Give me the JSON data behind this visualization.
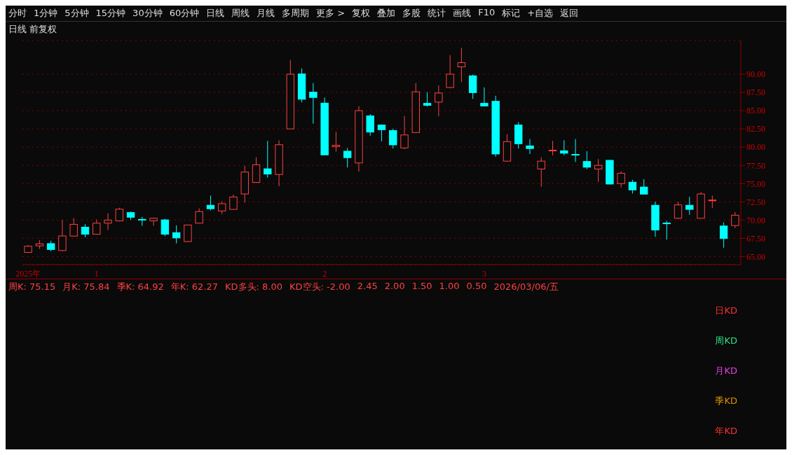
{
  "chart_data": [
    {
      "type": "candlestick",
      "title": "日线 前复权",
      "annotations": [
        "分时",
        "1分钟",
        "5分钟",
        "15分钟",
        "30分钟",
        "60分钟",
        "日线",
        "周线",
        "月线",
        "多周期",
        "更多 >",
        "复权",
        "叠加",
        "多股",
        "统计",
        "画线",
        "F10",
        "标记",
        "+自选",
        "返回"
      ],
      "categories": [
        "2025年",
        null,
        null,
        null,
        null,
        null,
        "1",
        null,
        null,
        null,
        null,
        null,
        null,
        null,
        null,
        null,
        null,
        null,
        null,
        null,
        null,
        null,
        null,
        null,
        null,
        null,
        "2",
        null,
        null,
        null,
        null,
        null,
        null,
        null,
        null,
        null,
        null,
        null,
        null,
        null,
        "3",
        null,
        null,
        null,
        null,
        null,
        null,
        null,
        null,
        null,
        null,
        null,
        null,
        null,
        null,
        null,
        null,
        null,
        null,
        null,
        null,
        null,
        null
      ],
      "ohlc": [
        [
          65.58,
          66.6,
          65.58,
          66.42
        ],
        [
          66.47,
          67.25,
          66.06,
          66.75
        ],
        [
          66.78,
          67.17,
          65.72,
          65.97
        ],
        [
          65.83,
          70.03,
          65.72,
          67.83
        ],
        [
          67.81,
          70.28,
          67.81,
          69.42
        ],
        [
          69.03,
          69.44,
          67.64,
          68.06
        ],
        [
          68.06,
          70.08,
          68.06,
          69.58
        ],
        [
          69.58,
          70.92,
          68.64,
          70.0
        ],
        [
          69.89,
          71.69,
          69.81,
          71.5
        ],
        [
          71.03,
          71.19,
          70.03,
          70.39
        ],
        [
          70.1,
          70.44,
          69.22,
          70.05
        ],
        [
          69.89,
          70.36,
          69.22,
          70.25
        ],
        [
          70.03,
          70.17,
          67.81,
          68.06
        ],
        [
          68.28,
          69.28,
          66.81,
          67.56
        ],
        [
          67.06,
          69.33,
          66.97,
          69.33
        ],
        [
          69.58,
          71.61,
          69.58,
          71.17
        ],
        [
          72.03,
          73.36,
          71.31,
          71.56
        ],
        [
          71.25,
          72.58,
          70.81,
          72.25
        ],
        [
          71.47,
          73.5,
          71.47,
          73.17
        ],
        [
          73.58,
          77.44,
          72.39,
          76.58
        ],
        [
          75.17,
          78.61,
          75.08,
          77.58
        ],
        [
          77.03,
          80.86,
          75.81,
          76.31
        ],
        [
          76.25,
          80.94,
          74.64,
          80.33
        ],
        [
          82.5,
          91.94,
          82.5,
          90.0
        ],
        [
          90.03,
          90.78,
          86.14,
          86.56
        ],
        [
          87.53,
          88.78,
          83.22,
          86.81
        ],
        [
          86.03,
          86.78,
          78.89,
          78.94
        ],
        [
          80.08,
          82.11,
          79.39,
          80.25
        ],
        [
          79.44,
          79.86,
          77.22,
          78.56
        ],
        [
          77.83,
          85.61,
          76.64,
          85.0
        ],
        [
          84.28,
          84.53,
          81.56,
          82.06
        ],
        [
          83.03,
          83.11,
          80.81,
          82.39
        ],
        [
          82.28,
          82.53,
          79.81,
          80.31
        ],
        [
          79.89,
          84.28,
          79.72,
          81.67
        ],
        [
          82.0,
          88.78,
          82.0,
          87.58
        ],
        [
          86.0,
          87.53,
          85.56,
          85.72
        ],
        [
          86.17,
          88.44,
          84.22,
          87.42
        ],
        [
          88.17,
          92.61,
          88.06,
          90.0
        ],
        [
          91.0,
          93.61,
          88.89,
          91.58
        ],
        [
          89.78,
          89.94,
          86.61,
          87.47
        ],
        [
          86.0,
          88.19,
          85.56,
          85.64
        ],
        [
          86.28,
          87.03,
          78.69,
          79.06
        ],
        [
          78.08,
          81.78,
          78.08,
          80.75
        ],
        [
          83.03,
          83.44,
          79.81,
          80.47
        ],
        [
          80.17,
          81.11,
          79.06,
          79.81
        ],
        [
          77.0,
          78.61,
          74.56,
          78.08
        ],
        [
          79.58,
          80.86,
          78.89,
          79.58
        ],
        [
          79.5,
          80.94,
          78.89,
          79.17
        ],
        [
          79.0,
          81.11,
          77.97,
          78.95
        ],
        [
          78.03,
          79.44,
          76.97,
          77.25
        ],
        [
          77.0,
          78.36,
          75.22,
          77.5
        ],
        [
          78.19,
          78.28,
          74.89,
          74.94
        ],
        [
          75.0,
          76.69,
          74.47,
          76.42
        ],
        [
          75.19,
          75.53,
          73.64,
          74.14
        ],
        [
          74.53,
          75.61,
          73.56,
          73.56
        ],
        [
          72.03,
          72.53,
          67.72,
          68.64
        ],
        [
          69.6,
          69.89,
          67.31,
          69.55
        ],
        [
          70.25,
          72.53,
          70.14,
          72.08
        ],
        [
          72.03,
          73.19,
          70.72,
          71.47
        ],
        [
          70.25,
          73.86,
          70.25,
          73.58
        ],
        [
          72.75,
          73.36,
          71.64,
          72.75
        ],
        [
          69.19,
          69.69,
          66.22,
          67.47
        ],
        [
          69.25,
          71.08,
          68.92,
          70.67
        ]
      ],
      "colors": [
        "#ff4040",
        "#ff4040",
        "#00ffff",
        "#ff4040",
        "#ff4040",
        "#00ffff",
        "#ff4040",
        "#ff4040",
        "#ff4040",
        "#00ffff",
        "#00ffff",
        "#ff4040",
        "#00ffff",
        "#00ffff",
        "#ff4040",
        "#ff4040",
        "#00ffff",
        "#ff4040",
        "#ff4040",
        "#ff4040",
        "#ff4040",
        "#00ffff",
        "#ff4040",
        "#ff4040",
        "#00ffff",
        "#00ffff",
        "#00ffff",
        "#ff4040",
        "#00ffff",
        "#ff4040",
        "#00ffff",
        "#00ffff",
        "#00ffff",
        "#ff4040",
        "#ff4040",
        "#00ffff",
        "#ff4040",
        "#ff4040",
        "#ff4040",
        "#00ffff",
        "#00ffff",
        "#00ffff",
        "#ff4040",
        "#00ffff",
        "#00ffff",
        "#ff4040",
        "#ff4040",
        "#00ffff",
        "#00ffff",
        "#00ffff",
        "#ff4040",
        "#00ffff",
        "#ff4040",
        "#00ffff",
        "#00ffff",
        "#00ffff",
        "#00ffff",
        "#ff4040",
        "#00ffff",
        "#ff4040",
        "#ff4040",
        "#00ffff",
        "#ff4040"
      ],
      "ylim": [
        63.9,
        94.6
      ],
      "yticks": [
        {
          "value": 65,
          "label": "65.00"
        },
        {
          "value": 67.5,
          "label": "67.50"
        },
        {
          "value": 70,
          "label": "70.00"
        },
        {
          "value": 72.5,
          "label": "72.50"
        },
        {
          "value": 75,
          "label": "75.00"
        },
        {
          "value": 77.5,
          "label": "77.50"
        },
        {
          "value": 80,
          "label": "80.00"
        },
        {
          "value": 82.5,
          "label": "82.50"
        },
        {
          "value": 85,
          "label": "85.00"
        },
        {
          "value": 87.5,
          "label": "87.50"
        },
        {
          "value": 90,
          "label": "90.00"
        }
      ],
      "grid": "y"
    },
    {
      "type": "other",
      "annotations": [
        "周K: 75.15",
        "月K: 75.84",
        "季K: 64.92",
        "年K: 62.27",
        "KD多头: 8.00",
        "KD空头: -2.00",
        "2.45",
        "2.00",
        "1.50",
        "1.00",
        "0.50",
        "2026/03/06/五"
      ],
      "categories": [
        "日KD",
        "周KD",
        "月KD",
        "季KD",
        "年KD"
      ],
      "colors": [
        "#ff3030",
        "#30e080",
        "#e040e0",
        "#e09000",
        "#ff3030"
      ]
    }
  ]
}
